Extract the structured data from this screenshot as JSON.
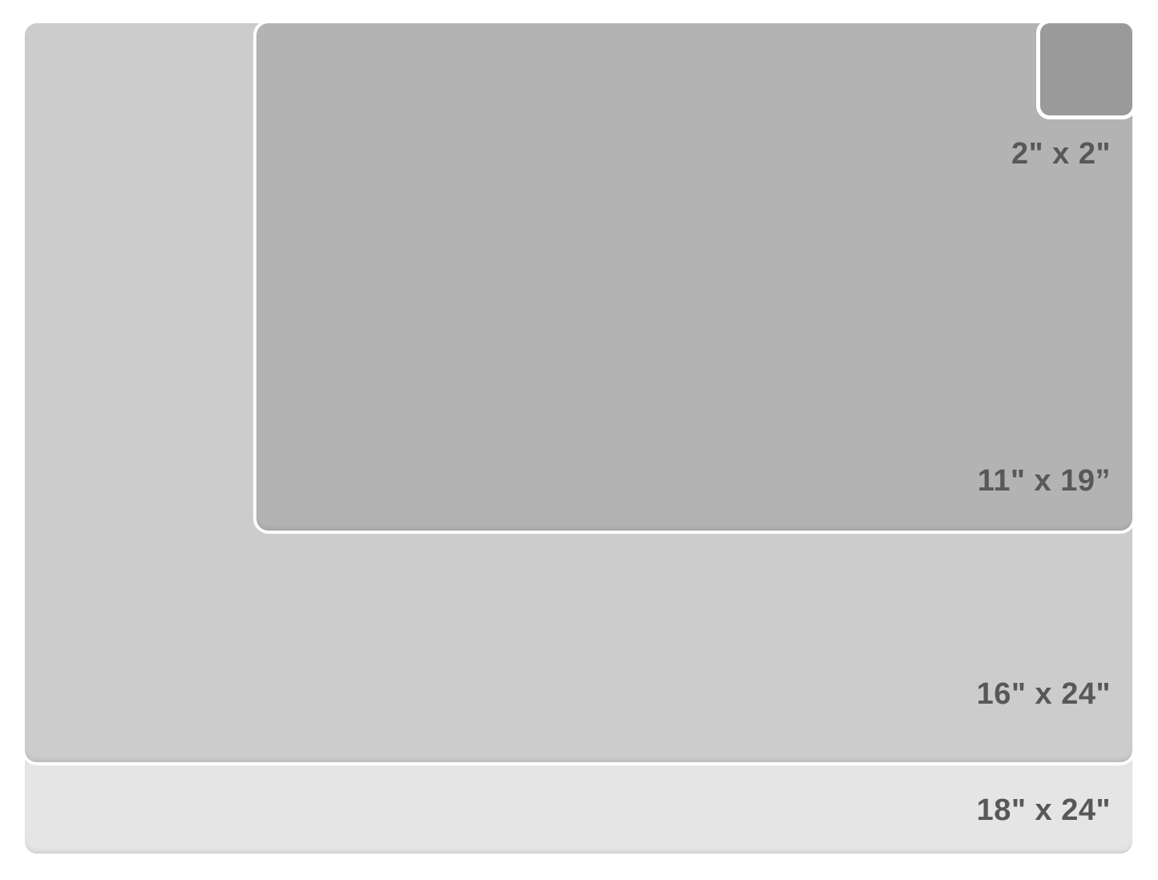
{
  "colors": {
    "background": "#ffffff",
    "label_text": "#58585b",
    "separator_stroke": "#ffffff"
  },
  "layers": {
    "size_18x24": {
      "label": "18\" x 24\"",
      "color": "#e5e5e5"
    },
    "size_16x24": {
      "label": "16\" x 24\"",
      "color": "#cccccc"
    },
    "size_11x19": {
      "label": "11\" x 19”",
      "color": "#b3b3b3"
    },
    "size_2x2": {
      "label": "2\" x 2\"",
      "color": "#9a9a9a"
    }
  }
}
